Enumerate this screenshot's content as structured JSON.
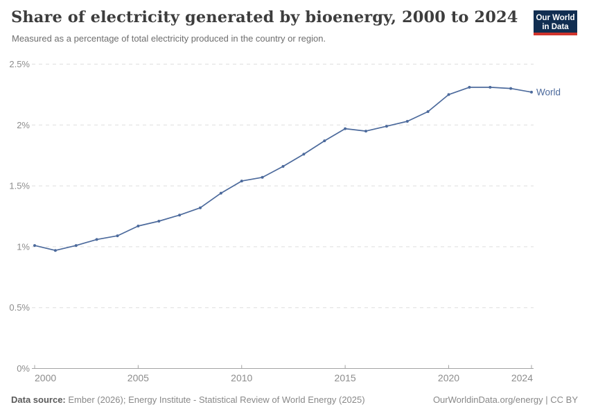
{
  "header": {
    "title": "Share of electricity generated by bioenergy, 2000 to 2024",
    "subtitle": "Measured as a percentage of total electricity produced in the country or region.",
    "logo": {
      "line1": "Our World",
      "line2": "in Data",
      "bg_color": "#112e51",
      "bar_color": "#d0342c"
    }
  },
  "chart_data": {
    "type": "line",
    "title": "Share of electricity generated by bioenergy, 2000 to 2024",
    "subtitle": "Measured as a percentage of total electricity produced in the country or region.",
    "xlabel": "",
    "ylabel": "",
    "unit": "%",
    "x": [
      2000,
      2001,
      2002,
      2003,
      2004,
      2005,
      2006,
      2007,
      2008,
      2009,
      2010,
      2011,
      2012,
      2013,
      2014,
      2015,
      2016,
      2017,
      2018,
      2019,
      2020,
      2021,
      2022,
      2023,
      2024
    ],
    "series": [
      {
        "name": "World",
        "color": "#4c6a9c",
        "values": [
          1.01,
          0.97,
          1.01,
          1.06,
          1.09,
          1.17,
          1.21,
          1.26,
          1.32,
          1.44,
          1.54,
          1.57,
          1.66,
          1.76,
          1.87,
          1.97,
          1.95,
          1.99,
          2.03,
          2.11,
          2.25,
          2.31,
          2.31,
          2.3,
          2.27
        ]
      }
    ],
    "ylim": [
      0,
      2.5
    ],
    "xlim": [
      2000,
      2024
    ],
    "y_ticks": [
      [
        0,
        "0%"
      ],
      [
        0.5,
        "0.5%"
      ],
      [
        1,
        "1%"
      ],
      [
        1.5,
        "1.5%"
      ],
      [
        2,
        "2%"
      ],
      [
        2.5,
        "2.5%"
      ]
    ],
    "x_ticks": [
      2000,
      2005,
      2010,
      2015,
      2020,
      2024
    ],
    "grid": "horizontal-dashed",
    "legend": "end-of-line-label",
    "end_label": "World",
    "colors": {
      "grid": "#dddddd",
      "axis": "#a3a3a3",
      "tick_label": "#8c8c8c"
    }
  },
  "footer": {
    "source_label": "Data source:",
    "source_text": " Ember (2026); Energy Institute - Statistical Review of World Energy (2025)",
    "attribution": "OurWorldinData.org/energy | CC BY"
  }
}
